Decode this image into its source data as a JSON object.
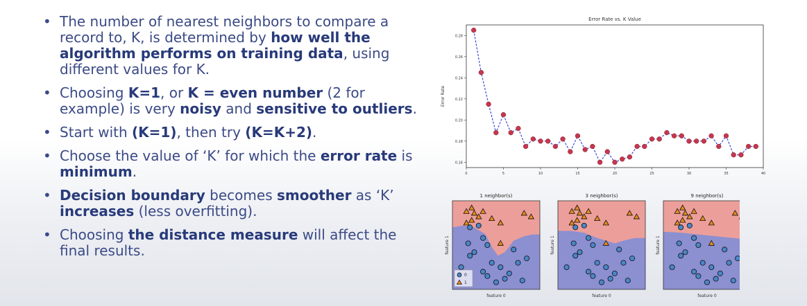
{
  "bullets": [
    {
      "segments": [
        {
          "t": "The number of nearest neighbors to compare a record to, K, is determined by ",
          "b": false
        },
        {
          "t": "how well the algorithm performs on training data",
          "b": true
        },
        {
          "t": ", using different values for K.",
          "b": false
        }
      ]
    },
    {
      "segments": [
        {
          "t": "Choosing ",
          "b": false
        },
        {
          "t": "K=1",
          "b": true
        },
        {
          "t": ", or ",
          "b": false
        },
        {
          "t": "K = even number",
          "b": true
        },
        {
          "t": " (2 for example) is very ",
          "b": false
        },
        {
          "t": "noisy",
          "b": true
        },
        {
          "t": " and ",
          "b": false
        },
        {
          "t": "sensitive to outliers",
          "b": true
        },
        {
          "t": ".",
          "b": false
        }
      ]
    },
    {
      "segments": [
        {
          "t": "Start with ",
          "b": false
        },
        {
          "t": "(K=1)",
          "b": true
        },
        {
          "t": ", then try ",
          "b": false
        },
        {
          "t": "(K=K+2)",
          "b": true
        },
        {
          "t": ".",
          "b": false
        }
      ]
    },
    {
      "segments": [
        {
          "t": "Choose the value of ‘K’ for which the ",
          "b": false
        },
        {
          "t": "error rate",
          "b": true
        },
        {
          "t": " is ",
          "b": false
        },
        {
          "t": "minimum",
          "b": true
        },
        {
          "t": ".",
          "b": false
        }
      ]
    },
    {
      "segments": [
        {
          "t": "Decision boundary",
          "b": true
        },
        {
          "t": " becomes ",
          "b": false
        },
        {
          "t": "smoother",
          "b": true
        },
        {
          "t": " as ‘K’ ",
          "b": false
        },
        {
          "t": "increases",
          "b": true
        },
        {
          "t": " (less overfitting).",
          "b": false
        }
      ]
    },
    {
      "segments": [
        {
          "t": "Choosing ",
          "b": false
        },
        {
          "t": "the distance measure",
          "b": true
        },
        {
          "t": " will affect the final results.",
          "b": false
        }
      ]
    }
  ],
  "chart_data": [
    {
      "type": "line",
      "title": "Error Rate vs. K Value",
      "xlabel": "",
      "ylabel": "Error Rate",
      "xlim": [
        0,
        40
      ],
      "ylim": [
        0.155,
        0.29
      ],
      "xticks": [
        0,
        5,
        10,
        15,
        20,
        25,
        30,
        35,
        40
      ],
      "yticks": [
        0.16,
        0.18,
        0.2,
        0.22,
        0.24,
        0.26,
        0.28
      ],
      "ytick_labels": [
        "0.16",
        "0.18",
        "0.20",
        "0.22",
        "0.24",
        "0.26",
        "0.28"
      ],
      "line_color": "#2b3bd6",
      "marker_color": "#c8364e",
      "x": [
        1,
        2,
        3,
        4,
        5,
        6,
        7,
        8,
        9,
        10,
        11,
        12,
        13,
        14,
        15,
        16,
        17,
        18,
        19,
        20,
        21,
        22,
        23,
        24,
        25,
        26,
        27,
        28,
        29,
        30,
        31,
        32,
        33,
        34,
        35,
        36,
        37,
        38,
        39
      ],
      "y": [
        0.285,
        0.245,
        0.215,
        0.188,
        0.205,
        0.188,
        0.192,
        0.175,
        0.182,
        0.18,
        0.18,
        0.175,
        0.182,
        0.17,
        0.185,
        0.172,
        0.175,
        0.16,
        0.17,
        0.16,
        0.163,
        0.165,
        0.175,
        0.175,
        0.182,
        0.182,
        0.188,
        0.185,
        0.185,
        0.18,
        0.18,
        0.18,
        0.185,
        0.175,
        0.185,
        0.167,
        0.167,
        0.175,
        0.175
      ]
    },
    {
      "type": "scatter",
      "panels": [
        {
          "title": "1 neighbor(s)",
          "boundary": [
            [
              0,
              0.7
            ],
            [
              0.12,
              0.72
            ],
            [
              0.25,
              0.7
            ],
            [
              0.38,
              0.62
            ],
            [
              0.45,
              0.48
            ],
            [
              0.52,
              0.38
            ],
            [
              0.6,
              0.42
            ],
            [
              0.7,
              0.55
            ],
            [
              0.82,
              0.6
            ],
            [
              0.92,
              0.62
            ],
            [
              1,
              0.62
            ]
          ]
        },
        {
          "title": "3 neighbor(s)",
          "boundary": [
            [
              0,
              0.66
            ],
            [
              0.15,
              0.66
            ],
            [
              0.3,
              0.64
            ],
            [
              0.45,
              0.58
            ],
            [
              0.55,
              0.55
            ],
            [
              0.65,
              0.52
            ],
            [
              0.75,
              0.55
            ],
            [
              0.88,
              0.58
            ],
            [
              1,
              0.58
            ]
          ]
        },
        {
          "title": "9 neighbor(s)",
          "boundary": [
            [
              0,
              0.65
            ],
            [
              0.2,
              0.64
            ],
            [
              0.4,
              0.62
            ],
            [
              0.6,
              0.6
            ],
            [
              0.8,
              0.58
            ],
            [
              1,
              0.56
            ]
          ]
        }
      ],
      "xlabel": "feature 0",
      "ylabel": "feature 1",
      "legend": [
        "0",
        "1"
      ],
      "class0_color": "#4a86c8",
      "class1_color": "#e58a1f",
      "bg_class0": "#8c8fd0",
      "bg_class1": "#ec9f9a",
      "class1_points": [
        [
          0.16,
          0.88
        ],
        [
          0.22,
          0.92
        ],
        [
          0.25,
          0.86
        ],
        [
          0.3,
          0.82
        ],
        [
          0.35,
          0.88
        ],
        [
          0.22,
          0.78
        ],
        [
          0.45,
          0.8
        ],
        [
          0.55,
          0.75
        ],
        [
          0.82,
          0.86
        ],
        [
          0.9,
          0.82
        ],
        [
          0.16,
          0.75
        ],
        [
          0.55,
          0.52
        ]
      ],
      "class0_points": [
        [
          0.2,
          0.7
        ],
        [
          0.3,
          0.72
        ],
        [
          0.35,
          0.58
        ],
        [
          0.18,
          0.52
        ],
        [
          0.4,
          0.5
        ],
        [
          0.25,
          0.42
        ],
        [
          0.2,
          0.38
        ],
        [
          0.45,
          0.3
        ],
        [
          0.35,
          0.2
        ],
        [
          0.4,
          0.15
        ],
        [
          0.55,
          0.25
        ],
        [
          0.65,
          0.18
        ],
        [
          0.75,
          0.3
        ],
        [
          0.85,
          0.35
        ],
        [
          0.7,
          0.45
        ],
        [
          0.6,
          0.12
        ],
        [
          0.5,
          0.08
        ],
        [
          0.1,
          0.25
        ],
        [
          0.8,
          0.1
        ]
      ]
    }
  ]
}
